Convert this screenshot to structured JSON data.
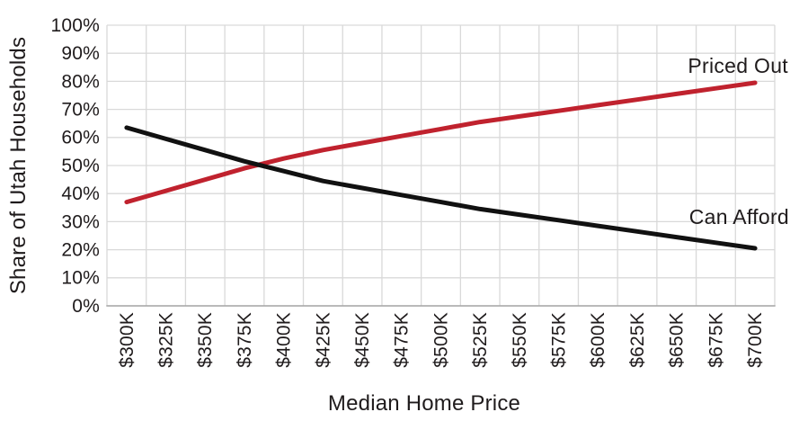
{
  "chart_data": {
    "type": "line",
    "title": "",
    "xlabel": "Median Home Price",
    "ylabel": "Share of Utah Households",
    "categories": [
      "$300K",
      "$325K",
      "$350K",
      "$375K",
      "$400K",
      "$425K",
      "$450K",
      "$475K",
      "$500K",
      "$525K",
      "$550K",
      "$575K",
      "$600K",
      "$625K",
      "$650K",
      "$675K",
      "$700K"
    ],
    "series": [
      {
        "name": "Priced Out",
        "color": "#c0222e",
        "values": [
          37,
          41,
          45,
          49,
          52.5,
          55.5,
          58,
          60.5,
          63,
          65.5,
          67.5,
          69.5,
          71.5,
          73.5,
          75.5,
          77.5,
          79.5
        ]
      },
      {
        "name": "Can Afford",
        "color": "#111111",
        "values": [
          63.5,
          59.5,
          55.5,
          51.5,
          48,
          44.5,
          42,
          39.5,
          37,
          34.5,
          32.5,
          30.5,
          28.5,
          26.5,
          24.5,
          22.5,
          20.5
        ]
      }
    ],
    "y_ticks": [
      "100%",
      "90%",
      "80%",
      "70%",
      "60%",
      "50%",
      "40%",
      "30%",
      "20%",
      "10%",
      "0%"
    ],
    "ylim": [
      0,
      100
    ],
    "x_tick_rotation": -90,
    "legend_position": "inline-end-labels",
    "grid": {
      "horizontal": true,
      "vertical": true
    },
    "colors": {
      "grid": "#d9d9d9",
      "axis_line": "#a6a6a6",
      "text": "#1f1b1c",
      "background": "#ffffff"
    }
  }
}
